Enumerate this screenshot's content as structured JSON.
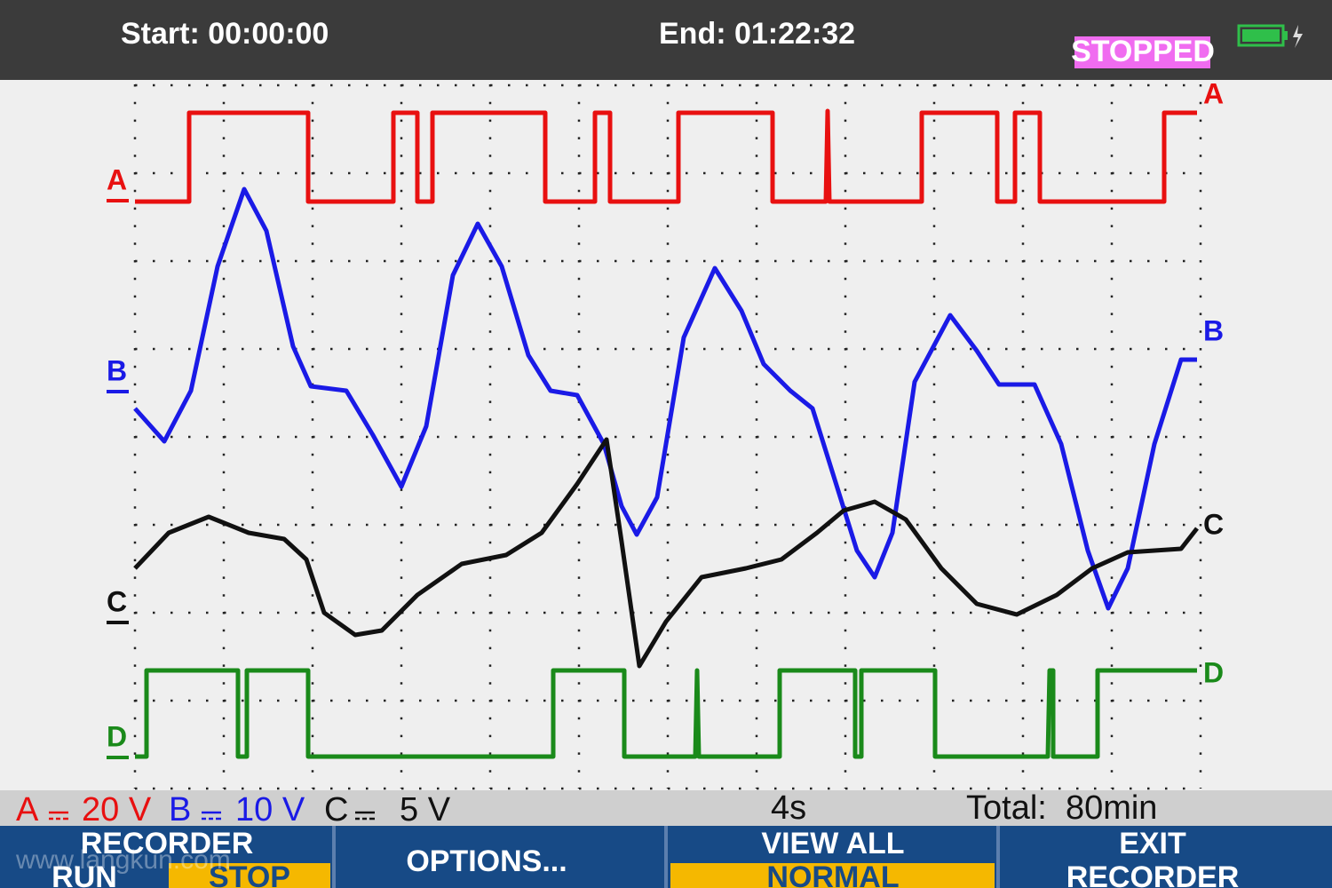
{
  "header": {
    "start": "Start: 00:00:00",
    "end": "End: 01:22:32",
    "status": "STOPPED"
  },
  "trace_labels": [
    "A",
    "B",
    "C",
    "D"
  ],
  "status_bar": {
    "channels": [
      {
        "name": "A",
        "scale": "20 V"
      },
      {
        "name": "B",
        "scale": "10 V"
      },
      {
        "name": "C",
        "scale": "5 V"
      }
    ],
    "timebase": "4s",
    "total": "Total:  80min"
  },
  "softkeys": [
    {
      "label": "RECORDER",
      "options": [
        "RUN",
        "STOP"
      ]
    },
    {
      "label": "OPTIONS..."
    },
    {
      "label": "VIEW ALL",
      "options": [
        "NORMAL"
      ]
    },
    {
      "label": "EXIT",
      "sub": "RECORDER"
    }
  ],
  "watermark": "www.langkun.com"
}
